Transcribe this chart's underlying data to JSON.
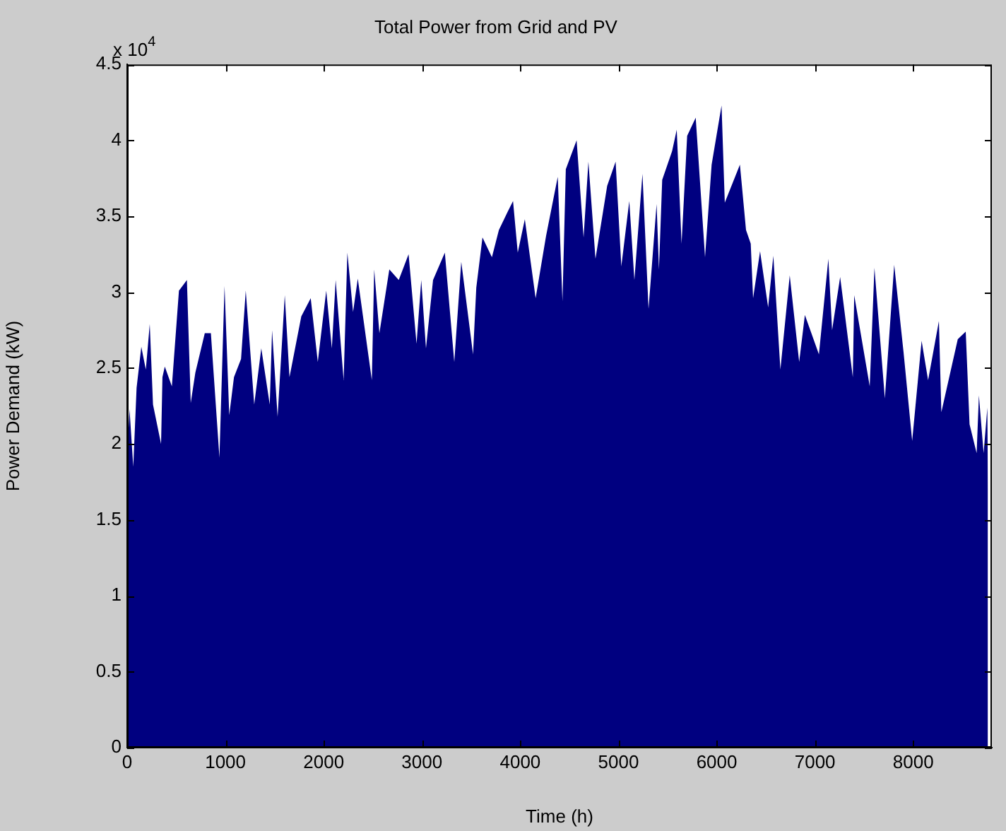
{
  "chart_data": {
    "type": "area",
    "title": "Total Power from Grid and PV",
    "xlabel": "Time (h)",
    "ylabel": "Power Demand (kW)",
    "annotations": [
      "x 10$^{4}$"
    ],
    "x": [
      0,
      24,
      62,
      96,
      144,
      190,
      230,
      263,
      345,
      359,
      383,
      455,
      527,
      608,
      647,
      694,
      790,
      852,
      920,
      939,
      991,
      1039,
      1087,
      1159,
      1207,
      1293,
      1365,
      1451,
      1475,
      1531,
      1604,
      1652,
      1772,
      1868,
      1940,
      2026,
      2083,
      2122,
      2203,
      2241,
      2299,
      2347,
      2490,
      2514,
      2567,
      2668,
      2764,
      2864,
      2945,
      2993,
      3041,
      3113,
      3233,
      3329,
      3400,
      3520,
      3553,
      3616,
      3712,
      3783,
      3865,
      3927,
      3975,
      4047,
      4157,
      4263,
      4382,
      4430,
      4464,
      4574,
      4645,
      4694,
      4766,
      4885,
      4971,
      5029,
      5110,
      5162,
      5244,
      5306,
      5388,
      5412,
      5445,
      5546,
      5593,
      5642,
      5699,
      5786,
      5881,
      5948,
      6049,
      6082,
      6236,
      6298,
      6346,
      6370,
      6441,
      6523,
      6576,
      6648,
      6743,
      6839,
      6897,
      7040,
      7136,
      7174,
      7256,
      7385,
      7399,
      7557,
      7605,
      7711,
      7806,
      7902,
      7989,
      8085,
      8151,
      8261,
      8286,
      8453,
      8534,
      8573,
      8645,
      8668,
      8716,
      8754,
      8760
    ],
    "series": [
      {
        "color": "#000080",
        "values": [
          1.92,
          2.23,
          1.85,
          2.37,
          2.64,
          2.49,
          2.79,
          2.26,
          2.0,
          2.44,
          2.51,
          2.38,
          3.01,
          3.08,
          2.27,
          2.47,
          2.73,
          2.73,
          2.09,
          1.91,
          3.04,
          2.19,
          2.44,
          2.56,
          3.01,
          2.26,
          2.63,
          2.26,
          2.75,
          2.18,
          2.98,
          2.44,
          2.84,
          2.96,
          2.54,
          3.01,
          2.63,
          3.08,
          2.42,
          3.26,
          2.87,
          3.09,
          2.42,
          3.15,
          2.73,
          3.15,
          3.08,
          3.25,
          2.66,
          3.08,
          2.63,
          3.08,
          3.26,
          2.54,
          3.2,
          2.59,
          3.03,
          3.36,
          3.23,
          3.41,
          3.52,
          3.6,
          3.26,
          3.48,
          2.96,
          3.37,
          3.76,
          2.94,
          3.81,
          4.0,
          3.36,
          3.86,
          3.22,
          3.7,
          3.86,
          3.17,
          3.6,
          3.08,
          3.78,
          2.89,
          3.58,
          3.15,
          3.74,
          3.93,
          4.07,
          3.32,
          4.03,
          4.15,
          3.23,
          3.84,
          4.23,
          3.59,
          3.84,
          3.41,
          3.32,
          2.96,
          3.27,
          2.9,
          3.24,
          2.49,
          3.11,
          2.54,
          2.85,
          2.59,
          3.22,
          2.75,
          3.1,
          2.44,
          2.98,
          2.38,
          3.16,
          2.3,
          3.18,
          2.6,
          2.02,
          2.68,
          2.42,
          2.81,
          2.21,
          2.69,
          2.74,
          2.13,
          1.94,
          2.32,
          1.94,
          2.24,
          1.7
        ]
      }
    ],
    "xlim": [
      0,
      8800
    ],
    "xticks": [
      0,
      1000,
      2000,
      3000,
      4000,
      5000,
      6000,
      7000,
      8000
    ],
    "ylim": [
      0,
      4.5
    ],
    "yticks": [
      0,
      0.5,
      1,
      1.5,
      2,
      2.5,
      3,
      3.5,
      4,
      4.5
    ]
  }
}
